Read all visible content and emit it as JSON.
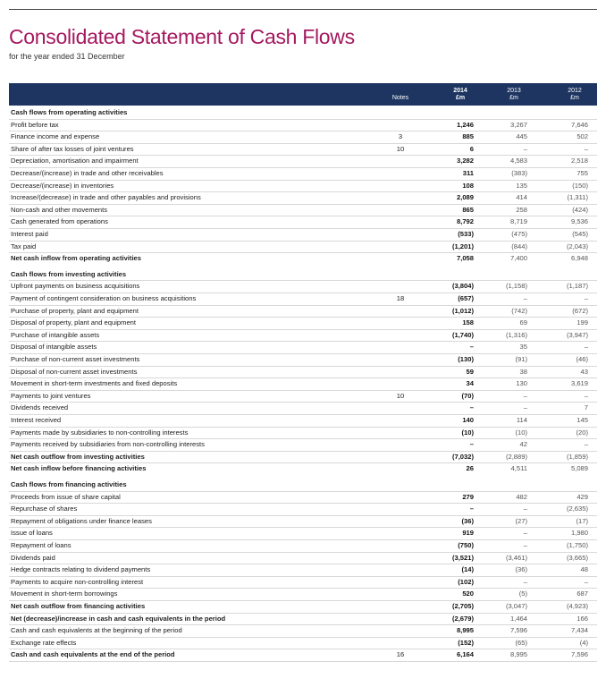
{
  "header": {
    "title": "Consolidated Statement of Cash Flows",
    "subtitle": "for the year ended 31 December"
  },
  "table": {
    "columns": [
      {
        "label": "Notes"
      },
      {
        "year": "2014",
        "unit": "£m",
        "bold": true
      },
      {
        "year": "2013",
        "unit": "£m"
      },
      {
        "year": "2012",
        "unit": "£m"
      }
    ],
    "sections": [
      {
        "heading": "Cash flows from operating activities",
        "rows": [
          {
            "label": "Profit before tax",
            "values": [
              "1,246",
              "3,267",
              "7,646"
            ]
          },
          {
            "label": "Finance income and expense",
            "notes": "3",
            "values": [
              "885",
              "445",
              "502"
            ]
          },
          {
            "label": "Share of after tax losses of joint ventures",
            "notes": "10",
            "values": [
              "6",
              "–",
              "–"
            ]
          },
          {
            "label": "Depreciation, amortisation and impairment",
            "values": [
              "3,282",
              "4,583",
              "2,518"
            ]
          },
          {
            "label": "Decrease/(increase) in trade and other receivables",
            "values": [
              "311",
              "(383)",
              "755"
            ]
          },
          {
            "label": "Decrease/(increase) in inventories",
            "values": [
              "108",
              "135",
              "(150)"
            ]
          },
          {
            "label": "Increase/(decrease) in trade and other payables and provisions",
            "values": [
              "2,089",
              "414",
              "(1,311)"
            ]
          },
          {
            "label": "Non-cash and other movements",
            "values": [
              "865",
              "258",
              "(424)"
            ]
          },
          {
            "label": "Cash generated from operations",
            "values": [
              "8,792",
              "8,719",
              "9,536"
            ]
          },
          {
            "label": "Interest paid",
            "values": [
              "(533)",
              "(475)",
              "(545)"
            ]
          },
          {
            "label": "Tax paid",
            "values": [
              "(1,201)",
              "(844)",
              "(2,043)"
            ]
          },
          {
            "label": "Net cash inflow from operating activities",
            "total": true,
            "values": [
              "7,058",
              "7,400",
              "6,948"
            ]
          }
        ]
      },
      {
        "heading": "Cash flows from investing activities",
        "rows": [
          {
            "label": "Upfront payments on business acquisitions",
            "values": [
              "(3,804)",
              "(1,158)",
              "(1,187)"
            ]
          },
          {
            "label": "Payment of contingent consideration on business acquisitions",
            "notes": "18",
            "values": [
              "(657)",
              "–",
              "–"
            ]
          },
          {
            "label": "Purchase of property, plant and equipment",
            "values": [
              "(1,012)",
              "(742)",
              "(672)"
            ]
          },
          {
            "label": "Disposal of property, plant and equipment",
            "values": [
              "158",
              "69",
              "199"
            ]
          },
          {
            "label": "Purchase of intangible assets",
            "values": [
              "(1,740)",
              "(1,316)",
              "(3,947)"
            ]
          },
          {
            "label": "Disposal of intangible assets",
            "values": [
              "–",
              "35",
              "–"
            ]
          },
          {
            "label": "Purchase of non-current asset investments",
            "values": [
              "(130)",
              "(91)",
              "(46)"
            ]
          },
          {
            "label": "Disposal of non-current asset investments",
            "values": [
              "59",
              "38",
              "43"
            ]
          },
          {
            "label": "Movement in short-term investments and fixed deposits",
            "values": [
              "34",
              "130",
              "3,619"
            ]
          },
          {
            "label": "Payments to joint ventures",
            "notes": "10",
            "values": [
              "(70)",
              "–",
              "–"
            ]
          },
          {
            "label": "Dividends received",
            "values": [
              "–",
              "–",
              "7"
            ]
          },
          {
            "label": "Interest received",
            "values": [
              "140",
              "114",
              "145"
            ]
          },
          {
            "label": "Payments made by subsidiaries to non-controlling interests",
            "values": [
              "(10)",
              "(10)",
              "(20)"
            ]
          },
          {
            "label": "Payments received by subsidiaries from non-controlling interests",
            "values": [
              "–",
              "42",
              "–"
            ]
          },
          {
            "label": "Net cash outflow from investing activities",
            "total": true,
            "values": [
              "(7,032)",
              "(2,889)",
              "(1,859)"
            ]
          },
          {
            "label": "Net cash inflow before financing activities",
            "total": true,
            "values": [
              "26",
              "4,511",
              "5,089"
            ]
          }
        ]
      },
      {
        "heading": "Cash flows from financing activities",
        "rows": [
          {
            "label": "Proceeds from issue of share capital",
            "values": [
              "279",
              "482",
              "429"
            ]
          },
          {
            "label": "Repurchase of shares",
            "values": [
              "–",
              "–",
              "(2,635)"
            ]
          },
          {
            "label": "Repayment of obligations under finance leases",
            "values": [
              "(36)",
              "(27)",
              "(17)"
            ]
          },
          {
            "label": "Issue of loans",
            "values": [
              "919",
              "–",
              "1,980"
            ]
          },
          {
            "label": "Repayment of loans",
            "values": [
              "(750)",
              "–",
              "(1,750)"
            ]
          },
          {
            "label": "Dividends paid",
            "values": [
              "(3,521)",
              "(3,461)",
              "(3,665)"
            ]
          },
          {
            "label": "Hedge contracts relating to dividend payments",
            "values": [
              "(14)",
              "(36)",
              "48"
            ]
          },
          {
            "label": "Payments to acquire non-controlling interest",
            "values": [
              "(102)",
              "–",
              "–"
            ]
          },
          {
            "label": "Movement in short-term borrowings",
            "values": [
              "520",
              "(5)",
              "687"
            ]
          },
          {
            "label": "Net cash outflow from financing activities",
            "total": true,
            "values": [
              "(2,705)",
              "(3,047)",
              "(4,923)"
            ]
          },
          {
            "label": "Net (decrease)/increase in cash and cash equivalents in the period",
            "total": true,
            "values": [
              "(2,679)",
              "1,464",
              "166"
            ]
          },
          {
            "label": "Cash and cash equivalents at the beginning of the period",
            "values": [
              "8,995",
              "7,596",
              "7,434"
            ]
          },
          {
            "label": "Exchange rate effects",
            "values": [
              "(152)",
              "(65)",
              "(4)"
            ]
          },
          {
            "label": "Cash and cash equivalents at the end of the period",
            "total": true,
            "notes": "16",
            "values": [
              "6,164",
              "8,995",
              "7,596"
            ]
          }
        ]
      }
    ]
  }
}
